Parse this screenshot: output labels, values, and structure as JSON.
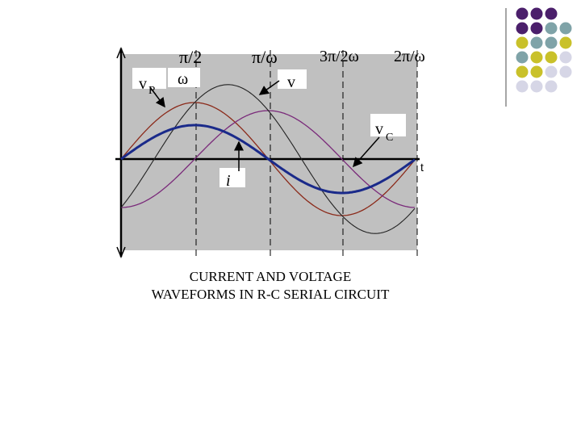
{
  "time_labels": [
    "π/2",
    "ω",
    "π/ω",
    "3π/2ω",
    "2π/ω"
  ],
  "curve_labels": {
    "v_r": {
      "main": "v",
      "sub": "R"
    },
    "v": "v",
    "v_c": {
      "main": "v",
      "sub": "C"
    },
    "i": "i"
  },
  "axis_label": "t",
  "caption": [
    "CURRENT AND VOLTAGE",
    "WAVEFORMS IN R-C SERIAL CIRCUIT"
  ]
}
